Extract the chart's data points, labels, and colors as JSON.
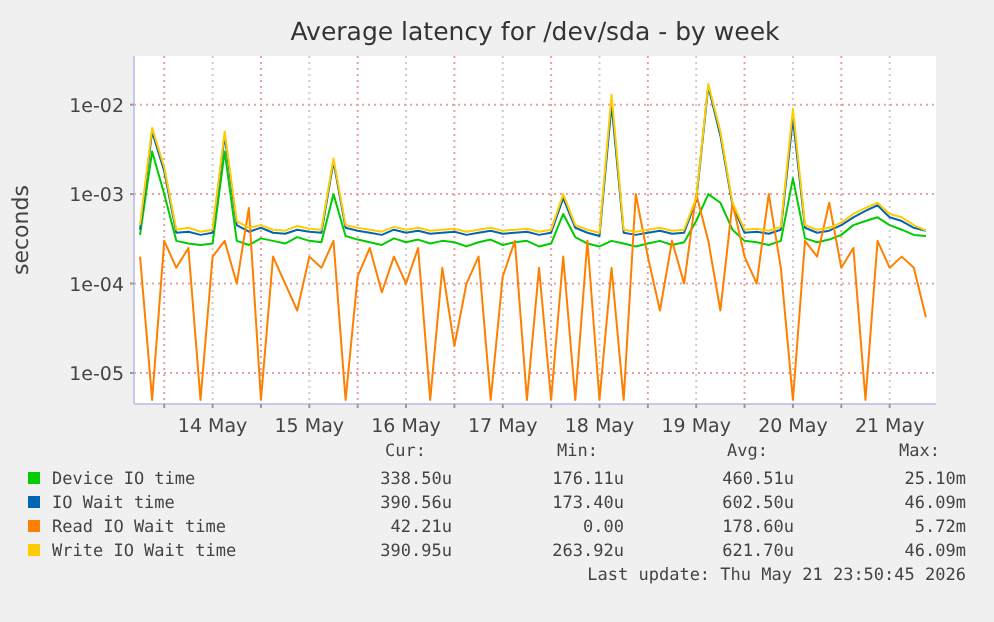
{
  "chart_data": {
    "type": "line",
    "title": "Average latency for /dev/sda - by week",
    "ylabel": "seconds",
    "log": "y",
    "grid": true,
    "legend": "bottom",
    "marker": "none",
    "line_style": "solid",
    "x": [
      "2026-05-13T18:00",
      "2026-05-13T21:00",
      "2026-05-14T00:00",
      "2026-05-14T03:00",
      "2026-05-14T06:00",
      "2026-05-14T09:00",
      "2026-05-14T12:00",
      "2026-05-14T15:00",
      "2026-05-14T18:00",
      "2026-05-14T21:00",
      "2026-05-15T00:00",
      "2026-05-15T03:00",
      "2026-05-15T06:00",
      "2026-05-15T09:00",
      "2026-05-15T12:00",
      "2026-05-15T15:00",
      "2026-05-15T18:00",
      "2026-05-15T21:00",
      "2026-05-16T00:00",
      "2026-05-16T03:00",
      "2026-05-16T06:00",
      "2026-05-16T09:00",
      "2026-05-16T12:00",
      "2026-05-16T15:00",
      "2026-05-16T18:00",
      "2026-05-16T21:00",
      "2026-05-17T00:00",
      "2026-05-17T03:00",
      "2026-05-17T06:00",
      "2026-05-17T09:00",
      "2026-05-17T12:00",
      "2026-05-17T15:00",
      "2026-05-17T18:00",
      "2026-05-17T21:00",
      "2026-05-18T00:00",
      "2026-05-18T03:00",
      "2026-05-18T06:00",
      "2026-05-18T09:00",
      "2026-05-18T12:00",
      "2026-05-18T15:00",
      "2026-05-18T18:00",
      "2026-05-18T21:00",
      "2026-05-19T00:00",
      "2026-05-19T03:00",
      "2026-05-19T06:00",
      "2026-05-19T09:00",
      "2026-05-19T12:00",
      "2026-05-19T15:00",
      "2026-05-19T18:00",
      "2026-05-19T21:00",
      "2026-05-20T00:00",
      "2026-05-20T03:00",
      "2026-05-20T06:00",
      "2026-05-20T09:00",
      "2026-05-20T12:00",
      "2026-05-20T15:00",
      "2026-05-20T18:00",
      "2026-05-20T21:00",
      "2026-05-21T00:00",
      "2026-05-21T03:00",
      "2026-05-21T06:00",
      "2026-05-21T09:00",
      "2026-05-21T12:00",
      "2026-05-21T15:00",
      "2026-05-21T18:00",
      "2026-05-21T21:00"
    ],
    "xlim": [
      "2026-05-13T16:30",
      "2026-05-21T23:30"
    ],
    "xticks": [
      {
        "value": "2026-05-14T00:00",
        "label": null
      },
      {
        "value": "2026-05-14T12:00",
        "label": "14 May"
      },
      {
        "value": "2026-05-15T00:00",
        "label": null
      },
      {
        "value": "2026-05-15T12:00",
        "label": "15 May"
      },
      {
        "value": "2026-05-16T00:00",
        "label": null
      },
      {
        "value": "2026-05-16T12:00",
        "label": "16 May"
      },
      {
        "value": "2026-05-17T00:00",
        "label": null
      },
      {
        "value": "2026-05-17T12:00",
        "label": "17 May"
      },
      {
        "value": "2026-05-18T00:00",
        "label": null
      },
      {
        "value": "2026-05-18T12:00",
        "label": "18 May"
      },
      {
        "value": "2026-05-19T00:00",
        "label": null
      },
      {
        "value": "2026-05-19T12:00",
        "label": "19 May"
      },
      {
        "value": "2026-05-20T00:00",
        "label": null
      },
      {
        "value": "2026-05-20T12:00",
        "label": "20 May"
      },
      {
        "value": "2026-05-21T00:00",
        "label": null
      },
      {
        "value": "2026-05-21T12:00",
        "label": "21 May"
      }
    ],
    "ylim": [
      4.5e-06,
      0.035
    ],
    "yticks": [
      {
        "value": 1e-05,
        "label": "1e-05"
      },
      {
        "value": 0.0001,
        "label": "1e-04"
      },
      {
        "value": 0.001,
        "label": "1e-03"
      },
      {
        "value": 0.01,
        "label": "1e-02"
      }
    ],
    "series": [
      {
        "name": "Device IO time",
        "color": "#00cc00",
        "values": [
          0.00035,
          0.003,
          0.001,
          0.0003,
          0.00028,
          0.00027,
          0.00028,
          0.003,
          0.0003,
          0.00027,
          0.00032,
          0.0003,
          0.00028,
          0.00033,
          0.0003,
          0.00029,
          0.001,
          0.00034,
          0.00031,
          0.00029,
          0.00027,
          0.00032,
          0.00029,
          0.00031,
          0.00028,
          0.0003,
          0.00029,
          0.00026,
          0.00029,
          0.00031,
          0.00027,
          0.00029,
          0.0003,
          0.00026,
          0.00028,
          0.0006,
          0.00033,
          0.00028,
          0.00026,
          0.0003,
          0.00028,
          0.00026,
          0.00028,
          0.0003,
          0.00027,
          0.00029,
          0.0005,
          0.001,
          0.0008,
          0.0004,
          0.0003,
          0.00029,
          0.00027,
          0.0003,
          0.0015,
          0.00032,
          0.00029,
          0.00031,
          0.00035,
          0.00045,
          0.0005,
          0.00055,
          0.00045,
          0.0004,
          0.00035,
          0.00034
        ]
      },
      {
        "name": "IO Wait time",
        "color": "#0066b3",
        "values": [
          0.0004,
          0.005,
          0.0018,
          0.00037,
          0.00038,
          0.00035,
          0.00037,
          0.0045,
          0.00045,
          0.00038,
          0.00042,
          0.00037,
          0.00036,
          0.0004,
          0.00038,
          0.00037,
          0.0023,
          0.00042,
          0.00039,
          0.00037,
          0.00035,
          0.0004,
          0.00037,
          0.00039,
          0.00036,
          0.00037,
          0.00038,
          0.00035,
          0.00037,
          0.00039,
          0.00036,
          0.00037,
          0.00038,
          0.00035,
          0.00037,
          0.0009,
          0.00042,
          0.00037,
          0.00034,
          0.01,
          0.00037,
          0.00035,
          0.00037,
          0.00039,
          0.00036,
          0.00037,
          0.00085,
          0.016,
          0.0045,
          0.00075,
          0.00037,
          0.00038,
          0.00036,
          0.0004,
          0.007,
          0.00042,
          0.00037,
          0.00039,
          0.00045,
          0.00055,
          0.00065,
          0.00075,
          0.00055,
          0.0005,
          0.00042,
          0.00039
        ]
      },
      {
        "name": "Read IO Wait time",
        "color": "#ff8000",
        "values": [
          0.0002,
          5e-06,
          0.0003,
          0.00015,
          0.00025,
          5e-06,
          0.0002,
          0.0003,
          0.0001,
          0.0007,
          5e-06,
          0.0002,
          0.0001,
          5e-05,
          0.0002,
          0.00015,
          0.0003,
          5e-06,
          0.00012,
          0.00025,
          8e-05,
          0.0002,
          0.0001,
          0.00025,
          5e-06,
          0.00015,
          2e-05,
          0.0001,
          0.0002,
          5e-06,
          0.00012,
          0.0003,
          5e-06,
          0.00015,
          5e-06,
          0.0002,
          5e-06,
          0.0003,
          5e-06,
          0.00015,
          5e-06,
          0.001,
          0.0002,
          5e-05,
          0.0003,
          0.0001,
          0.001,
          0.0003,
          5e-05,
          0.0008,
          0.0002,
          0.0001,
          0.001,
          0.00015,
          5e-06,
          0.0003,
          0.0002,
          0.0008,
          0.00015,
          0.00025,
          5e-06,
          0.0003,
          0.00015,
          0.0002,
          0.00015,
          4.2e-05
        ]
      },
      {
        "name": "Write IO Wait time",
        "color": "#ffcc00",
        "values": [
          0.00045,
          0.0055,
          0.002,
          0.0004,
          0.00042,
          0.00038,
          0.0004,
          0.005,
          0.0005,
          0.00042,
          0.00045,
          0.0004,
          0.00039,
          0.00044,
          0.00041,
          0.0004,
          0.0025,
          0.00045,
          0.00042,
          0.0004,
          0.00038,
          0.00043,
          0.0004,
          0.00042,
          0.00039,
          0.0004,
          0.00041,
          0.00038,
          0.0004,
          0.00042,
          0.00039,
          0.0004,
          0.00041,
          0.00038,
          0.0004,
          0.001,
          0.00045,
          0.0004,
          0.00037,
          0.013,
          0.0004,
          0.00038,
          0.0004,
          0.00042,
          0.00039,
          0.0004,
          0.0009,
          0.017,
          0.005,
          0.0008,
          0.0004,
          0.00041,
          0.00039,
          0.00043,
          0.009,
          0.00045,
          0.0004,
          0.00042,
          0.00048,
          0.0006,
          0.0007,
          0.0008,
          0.0006,
          0.00055,
          0.00045,
          0.00039
        ]
      }
    ],
    "annotations": [
      "Cur:",
      "Min:",
      "Avg:",
      "Max:",
      "338.50u",
      "176.11u",
      "460.51u",
      "25.10m",
      "390.56u",
      "173.40u",
      "602.50u",
      "46.09m",
      "42.21u",
      "0.00",
      "178.60u",
      "5.72m",
      "390.95u",
      "263.92u",
      "621.70u",
      "46.09m",
      "Last update: Thu May 21 23:50:45 2026"
    ]
  }
}
